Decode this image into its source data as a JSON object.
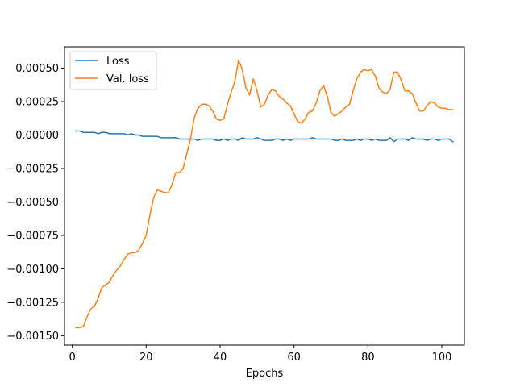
{
  "chart_data": {
    "type": "line",
    "title": "",
    "xlabel": "Epochs",
    "ylabel": "",
    "xlim": [
      -2.1,
      106.1
    ],
    "ylim": [
      -0.00157,
      0.00066
    ],
    "x_ticks": [
      0,
      20,
      40,
      60,
      80,
      100
    ],
    "x_tick_labels": [
      "0",
      "20",
      "40",
      "60",
      "80",
      "100"
    ],
    "y_ticks": [
      -0.0015,
      -0.00125,
      -0.001,
      -0.00075,
      -0.0005,
      -0.00025,
      0.0,
      0.00025,
      0.0005
    ],
    "y_tick_labels": [
      "−0.00150",
      "−0.00125",
      "−0.00100",
      "−0.00075",
      "−0.00050",
      "−0.00025",
      "0.00000",
      "0.00025",
      "0.00050"
    ],
    "grid": false,
    "legend_position": "top-left",
    "series": [
      {
        "name": "Loss",
        "color": "#1f77b4",
        "x": [
          1,
          2,
          3,
          4,
          5,
          6,
          7,
          8,
          9,
          10,
          11,
          12,
          13,
          14,
          15,
          16,
          17,
          18,
          19,
          20,
          21,
          22,
          23,
          24,
          25,
          26,
          27,
          28,
          29,
          30,
          31,
          32,
          33,
          34,
          35,
          36,
          37,
          38,
          39,
          40,
          41,
          42,
          43,
          44,
          45,
          46,
          47,
          48,
          49,
          50,
          51,
          52,
          53,
          54,
          55,
          56,
          57,
          58,
          59,
          60,
          61,
          62,
          63,
          64,
          65,
          66,
          67,
          68,
          69,
          70,
          71,
          72,
          73,
          74,
          75,
          76,
          77,
          78,
          79,
          80,
          81,
          82,
          83,
          84,
          85,
          86,
          87,
          88,
          89,
          90,
          91,
          92,
          93,
          94,
          95,
          96,
          97,
          98,
          99,
          100,
          101,
          102,
          103
        ],
        "values": [
          3e-05,
          3e-05,
          2e-05,
          2e-05,
          2e-05,
          2e-05,
          1e-05,
          2e-05,
          2e-05,
          1e-05,
          1e-05,
          1e-05,
          1e-05,
          1e-05,
          0.0,
          1e-05,
          0.0,
          0.0,
          -1e-05,
          -1e-05,
          -1e-05,
          -1e-05,
          -1e-05,
          -2e-05,
          -2e-05,
          -2e-05,
          -2e-05,
          -2e-05,
          -3e-05,
          -3e-05,
          -3e-05,
          -3e-05,
          -3e-05,
          -4e-05,
          -3e-05,
          -3e-05,
          -3e-05,
          -3e-05,
          -4e-05,
          -4e-05,
          -3e-05,
          -4e-05,
          -3e-05,
          -3e-05,
          -4e-05,
          -2e-05,
          -3e-05,
          -3e-05,
          -3e-05,
          -2e-05,
          -3e-05,
          -4e-05,
          -4e-05,
          -4e-05,
          -3e-05,
          -3e-05,
          -4e-05,
          -3e-05,
          -4e-05,
          -3e-05,
          -3e-05,
          -3e-05,
          -3e-05,
          -3e-05,
          -2e-05,
          -3e-05,
          -3e-05,
          -3e-05,
          -3e-05,
          -3e-05,
          -4e-05,
          -4e-05,
          -3e-05,
          -4e-05,
          -4e-05,
          -4e-05,
          -3e-05,
          -4e-05,
          -3e-05,
          -3e-05,
          -4e-05,
          -3e-05,
          -4e-05,
          -4e-05,
          -4e-05,
          -2e-05,
          -5e-05,
          -3e-05,
          -3e-05,
          -3e-05,
          -4e-05,
          -2e-05,
          -3e-05,
          -3e-05,
          -3e-05,
          -4e-05,
          -3e-05,
          -3e-05,
          -4e-05,
          -3e-05,
          -3e-05,
          -3e-05,
          -5e-05
        ]
      },
      {
        "name": "Val. loss",
        "color": "#ff7f0e",
        "x": [
          1,
          2,
          3,
          4,
          5,
          6,
          7,
          8,
          9,
          10,
          11,
          12,
          13,
          14,
          15,
          16,
          17,
          18,
          19,
          20,
          21,
          22,
          23,
          24,
          25,
          26,
          27,
          28,
          29,
          30,
          31,
          32,
          33,
          34,
          35,
          36,
          37,
          38,
          39,
          40,
          41,
          42,
          43,
          44,
          45,
          46,
          47,
          48,
          49,
          50,
          51,
          52,
          53,
          54,
          55,
          56,
          57,
          58,
          59,
          60,
          61,
          62,
          63,
          64,
          65,
          66,
          67,
          68,
          69,
          70,
          71,
          72,
          73,
          74,
          75,
          76,
          77,
          78,
          79,
          80,
          81,
          82,
          83,
          84,
          85,
          86,
          87,
          88,
          89,
          90,
          91,
          92,
          93,
          94,
          95,
          96,
          97,
          98,
          99,
          100,
          101,
          102,
          103
        ],
        "values": [
          -0.00144,
          -0.00144,
          -0.00143,
          -0.00136,
          -0.0013,
          -0.00128,
          -0.00122,
          -0.00114,
          -0.00112,
          -0.0011,
          -0.00105,
          -0.00101,
          -0.00098,
          -0.00093,
          -0.00089,
          -0.00088,
          -0.00088,
          -0.00086,
          -0.00081,
          -0.00075,
          -0.0006,
          -0.00047,
          -0.00041,
          -0.00042,
          -0.00043,
          -0.00043,
          -0.00037,
          -0.00028,
          -0.00028,
          -0.00025,
          -0.00014,
          -3e-05,
          0.00013,
          0.0002,
          0.00023,
          0.00023,
          0.00022,
          0.00018,
          0.00012,
          0.00011,
          0.00012,
          0.00023,
          0.00032,
          0.0004,
          0.00056,
          0.00049,
          0.00035,
          0.0003,
          0.00042,
          0.00033,
          0.00021,
          0.00023,
          0.0003,
          0.00034,
          0.00033,
          0.00029,
          0.00027,
          0.00024,
          0.00022,
          0.00016,
          0.0001,
          9e-05,
          0.00012,
          0.00017,
          0.00018,
          0.00024,
          0.00033,
          0.00037,
          0.00029,
          0.00017,
          0.00014,
          0.00016,
          0.00018,
          0.00021,
          0.00023,
          0.00033,
          0.00042,
          0.00047,
          0.00049,
          0.00048,
          0.00049,
          0.00044,
          0.00035,
          0.00032,
          0.00031,
          0.00034,
          0.00047,
          0.00047,
          0.00041,
          0.00033,
          0.00033,
          0.00031,
          0.00024,
          0.00018,
          0.00018,
          0.00022,
          0.00025,
          0.00024,
          0.00021,
          0.0002,
          0.0002,
          0.00019,
          0.00019
        ]
      }
    ]
  }
}
